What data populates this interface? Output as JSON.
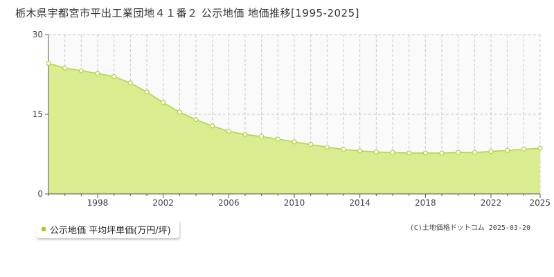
{
  "page": {
    "title": "栃木県宇都宮市平出工業団地４１番２ 公示地価 地価推移[1995-2025]",
    "credit": "(C)土地価格ドットコム 2025-03-20"
  },
  "legend": {
    "label": "公示地価 平均坪単価(万円/坪)"
  },
  "colors": {
    "fill": "#d9ec90",
    "line": "#b5d43e",
    "marker_fill": "#ffffff",
    "legend_swatch": "#a8cc2c",
    "grid_dashed": "#c8c8c8",
    "plot_bg": "#fafafa"
  },
  "chart_data": {
    "type": "area",
    "title": "",
    "xlabel": "",
    "ylabel": "",
    "x": [
      1995,
      1996,
      1997,
      1998,
      1999,
      2000,
      2001,
      2002,
      2003,
      2004,
      2005,
      2006,
      2007,
      2008,
      2009,
      2010,
      2011,
      2012,
      2013,
      2014,
      2015,
      2016,
      2017,
      2018,
      2019,
      2020,
      2021,
      2022,
      2023,
      2024,
      2025
    ],
    "series": [
      {
        "name": "公示地価 平均坪単価(万円/坪)",
        "values": [
          24.6,
          23.7,
          23.2,
          22.7,
          22.1,
          20.9,
          19.2,
          17.2,
          15.4,
          14.0,
          12.8,
          11.8,
          11.2,
          10.8,
          10.3,
          9.8,
          9.3,
          8.8,
          8.4,
          8.1,
          7.9,
          7.8,
          7.7,
          7.7,
          7.7,
          7.8,
          7.8,
          8.0,
          8.2,
          8.4,
          8.6
        ]
      }
    ],
    "ylim": [
      0,
      30
    ],
    "yticks": [
      0,
      15,
      30
    ],
    "xticks": [
      1998,
      2002,
      2006,
      2010,
      2014,
      2018,
      2022,
      2025
    ],
    "xlim": [
      1995,
      2025
    ],
    "grid": true,
    "legend_position": "bottom-left"
  }
}
